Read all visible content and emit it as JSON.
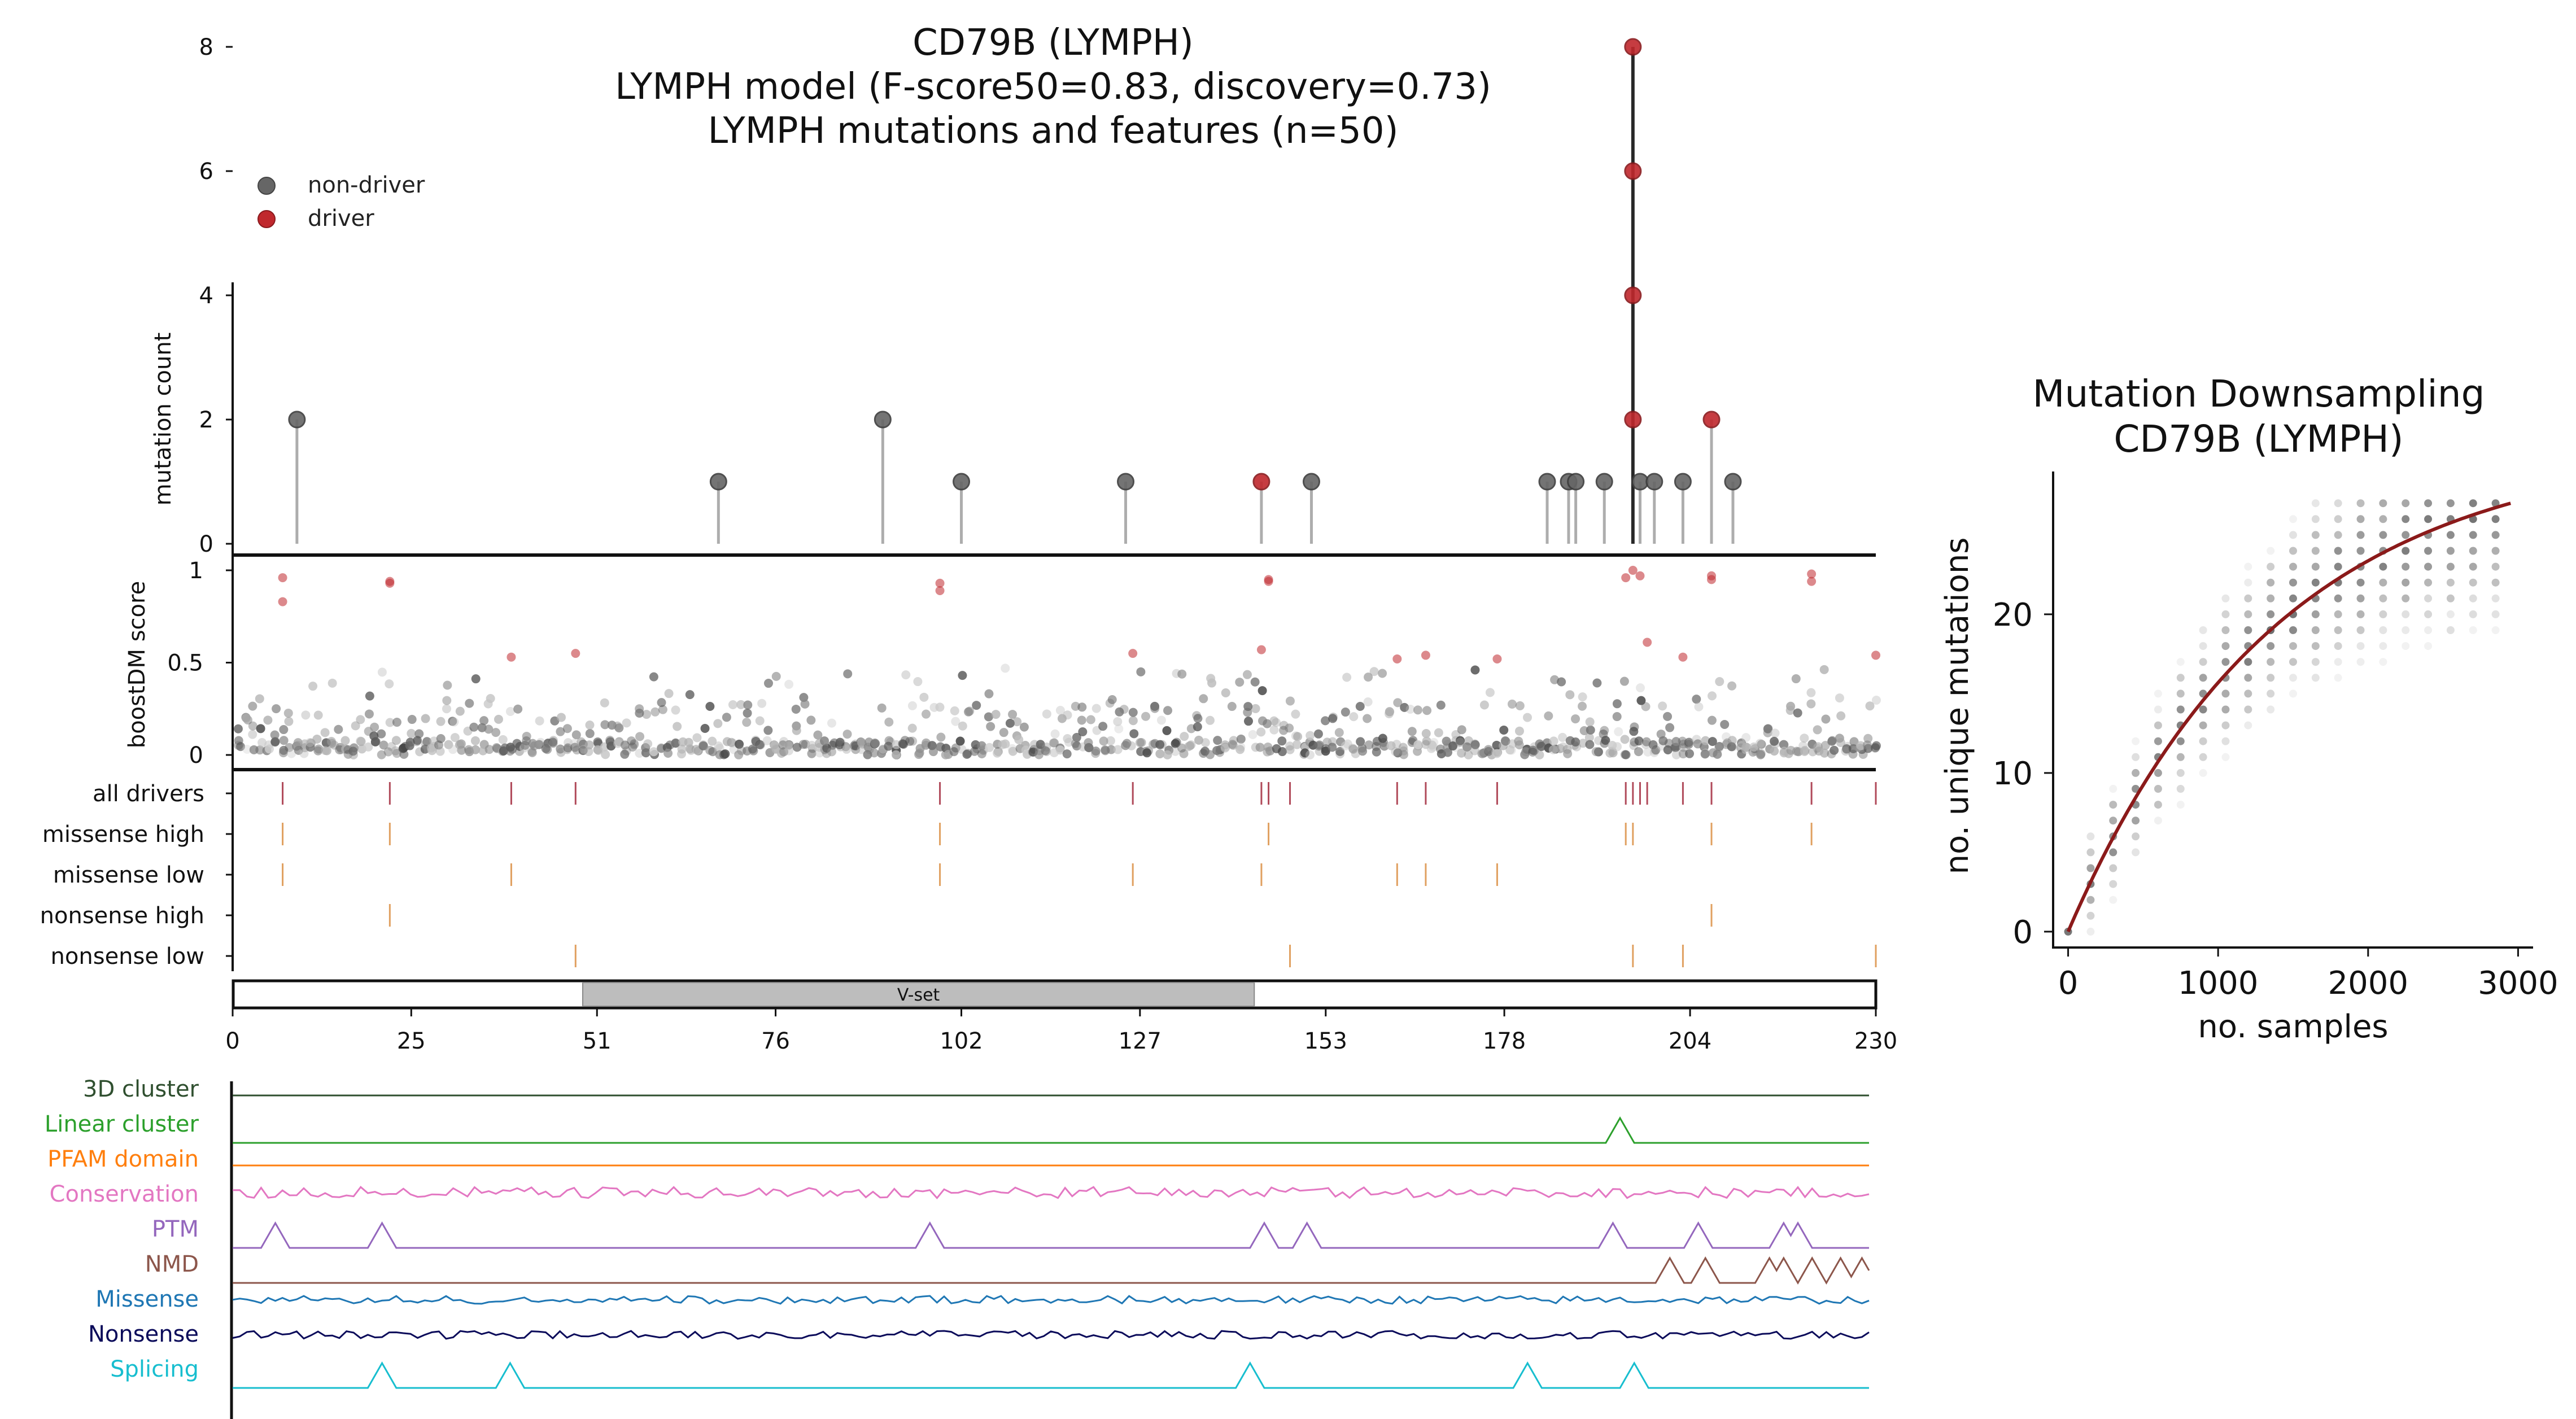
{
  "colors": {
    "non_driver": "#666666",
    "driver": "#c0282d",
    "driver_tick": "#b04a5a",
    "missense_tick": "#e0a060",
    "domain_fill": "#bdbdbd",
    "downsample_fit": "#8b1a1a"
  },
  "main_title": {
    "line1": "CD79B (LYMPH)",
    "line2": "LYMPH model (F-score50=0.83, discovery=0.73)",
    "line3": "LYMPH mutations and features (n=50)"
  },
  "legend": {
    "items": [
      {
        "label": "non-driver",
        "color": "#666666"
      },
      {
        "label": "driver",
        "color": "#c0282d"
      }
    ]
  },
  "chart_data": [
    {
      "type": "scatter",
      "name": "lollipop",
      "ylabel": "mutation count",
      "xlim": [
        0,
        230
      ],
      "ylim": [
        0,
        8
      ],
      "yticks": [
        0,
        2,
        4,
        6,
        8
      ],
      "points": [
        {
          "x": 9,
          "y": 2,
          "driver": false
        },
        {
          "x": 68,
          "y": 1,
          "driver": false
        },
        {
          "x": 91,
          "y": 2,
          "driver": false
        },
        {
          "x": 102,
          "y": 1,
          "driver": false
        },
        {
          "x": 125,
          "y": 1,
          "driver": false
        },
        {
          "x": 144,
          "y": 1,
          "driver": true
        },
        {
          "x": 151,
          "y": 1,
          "driver": false
        },
        {
          "x": 184,
          "y": 1,
          "driver": false
        },
        {
          "x": 187,
          "y": 1,
          "driver": false
        },
        {
          "x": 188,
          "y": 1,
          "driver": false
        },
        {
          "x": 192,
          "y": 1,
          "driver": false
        },
        {
          "x": 196,
          "y": 8,
          "driver": true
        },
        {
          "x": 196,
          "y": 6,
          "driver": true
        },
        {
          "x": 196,
          "y": 4,
          "driver": true
        },
        {
          "x": 196,
          "y": 2,
          "driver": true
        },
        {
          "x": 197,
          "y": 1,
          "driver": false
        },
        {
          "x": 199,
          "y": 1,
          "driver": false
        },
        {
          "x": 203,
          "y": 1,
          "driver": false
        },
        {
          "x": 207,
          "y": 2,
          "driver": true
        },
        {
          "x": 210,
          "y": 1,
          "driver": false
        }
      ]
    },
    {
      "type": "scatter",
      "name": "boostdm",
      "ylabel": "boostDM score",
      "xlim": [
        0,
        230
      ],
      "ylim": [
        0,
        1
      ],
      "yticks": [
        0,
        0.5,
        1
      ],
      "ytick_labels": [
        "0",
        "0.5",
        "1"
      ],
      "driver_points": [
        {
          "x": 7,
          "y": 0.96
        },
        {
          "x": 7,
          "y": 0.83
        },
        {
          "x": 22,
          "y": 0.94
        },
        {
          "x": 22,
          "y": 0.93
        },
        {
          "x": 39,
          "y": 0.53
        },
        {
          "x": 48,
          "y": 0.55
        },
        {
          "x": 99,
          "y": 0.93
        },
        {
          "x": 99,
          "y": 0.89
        },
        {
          "x": 126,
          "y": 0.55
        },
        {
          "x": 144,
          "y": 0.57
        },
        {
          "x": 145,
          "y": 0.95
        },
        {
          "x": 145,
          "y": 0.94
        },
        {
          "x": 163,
          "y": 0.52
        },
        {
          "x": 167,
          "y": 0.54
        },
        {
          "x": 177,
          "y": 0.52
        },
        {
          "x": 195,
          "y": 0.96
        },
        {
          "x": 196,
          "y": 1.0
        },
        {
          "x": 197,
          "y": 0.97
        },
        {
          "x": 198,
          "y": 0.61
        },
        {
          "x": 203,
          "y": 0.53
        },
        {
          "x": 207,
          "y": 0.97
        },
        {
          "x": 207,
          "y": 0.95
        },
        {
          "x": 221,
          "y": 0.98
        },
        {
          "x": 221,
          "y": 0.94
        },
        {
          "x": 230,
          "y": 0.54
        }
      ],
      "nondriver_seed": 17,
      "nondriver_per_position": 4
    },
    {
      "type": "table",
      "name": "driver_tracks",
      "xlim": [
        0,
        230
      ],
      "rows": [
        {
          "label": "all drivers",
          "positions": [
            7,
            22,
            39,
            48,
            99,
            126,
            144,
            145,
            148,
            163,
            167,
            177,
            195,
            196,
            197,
            198,
            203,
            207,
            221,
            230
          ]
        },
        {
          "label": "missense high",
          "positions": [
            7,
            22,
            99,
            145,
            195,
            196,
            207,
            221
          ]
        },
        {
          "label": "missense low",
          "positions": [
            7,
            39,
            99,
            126,
            144,
            163,
            167,
            177
          ]
        },
        {
          "label": "nonsense high",
          "positions": [
            22,
            207
          ]
        },
        {
          "label": "nonsense low",
          "positions": [
            48,
            148,
            196,
            203,
            230
          ]
        }
      ]
    },
    {
      "type": "bar",
      "name": "domains",
      "xlim": [
        0,
        230
      ],
      "domains": [
        {
          "label": "V-set",
          "start": 49,
          "end": 143
        }
      ],
      "xticks": [
        0,
        25,
        51,
        76,
        102,
        127,
        153,
        178,
        204,
        230
      ]
    },
    {
      "type": "line",
      "name": "feature_tracks",
      "xlim": [
        0,
        230
      ],
      "tracks": [
        {
          "label": "3D cluster",
          "color": "#2f4f2f",
          "kind": "flat"
        },
        {
          "label": "Linear cluster",
          "color": "#2ca02c",
          "kind": "peaks",
          "peaks": [
            195
          ]
        },
        {
          "label": "PFAM domain",
          "color": "#ff7f0e",
          "kind": "flat"
        },
        {
          "label": "Conservation",
          "color": "#e377c2",
          "kind": "noise"
        },
        {
          "label": "PTM",
          "color": "#9467bd",
          "kind": "peaks",
          "peaks": [
            6,
            21,
            98,
            145,
            151,
            194,
            206,
            218,
            220
          ]
        },
        {
          "label": "NMD",
          "color": "#8c564b",
          "kind": "peaks",
          "peaks": [
            202,
            207,
            216,
            218,
            222,
            226,
            229
          ]
        },
        {
          "label": "Missense",
          "color": "#1f77b4",
          "kind": "noise"
        },
        {
          "label": "Nonsense",
          "color": "#0b0b5a",
          "kind": "noise"
        },
        {
          "label": "Splicing",
          "color": "#17becf",
          "kind": "peaks",
          "peaks": [
            21,
            39,
            143,
            182,
            197
          ]
        }
      ]
    },
    {
      "type": "scatter",
      "name": "downsampling",
      "title_line1": "Mutation Downsampling",
      "title_line2": "CD79B (LYMPH)",
      "xlabel": "no. samples",
      "ylabel": "no. unique mutations",
      "xlim": [
        -100,
        3100
      ],
      "ylim": [
        -1,
        29
      ],
      "xticks": [
        0,
        1000,
        2000,
        3000
      ],
      "yticks": [
        0,
        10,
        20
      ],
      "fit": {
        "x": [
          0,
          500,
          1000,
          1500,
          2000,
          2500,
          2950
        ],
        "y": [
          0,
          7.5,
          13.5,
          18.2,
          21.9,
          24.7,
          27
        ]
      }
    }
  ]
}
